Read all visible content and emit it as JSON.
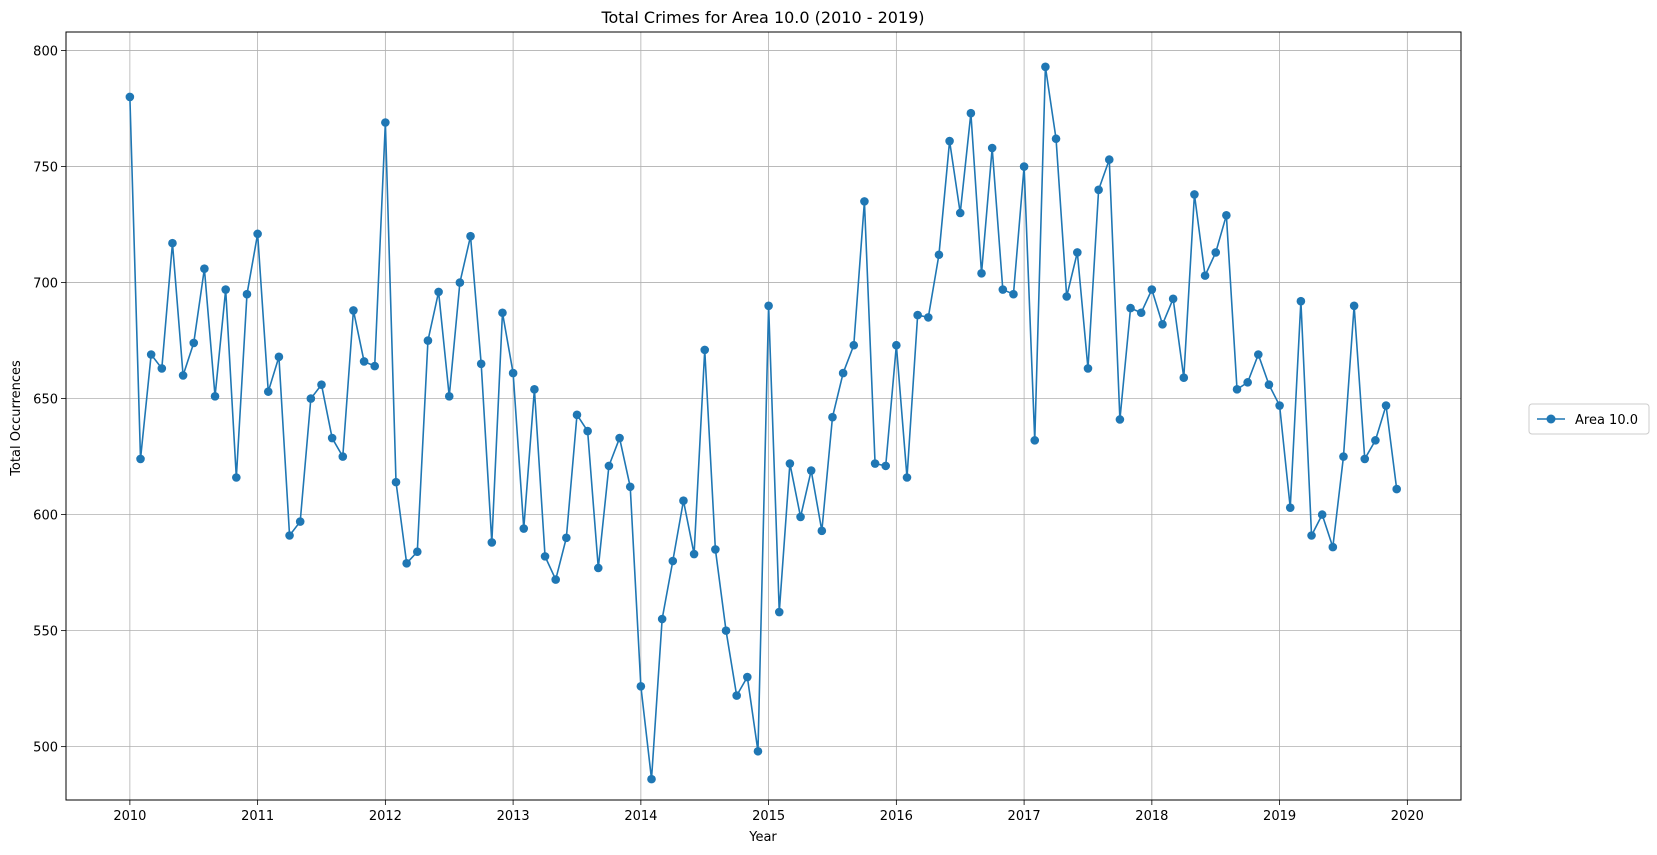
{
  "chart_data": {
    "type": "line",
    "title": "Total Crimes for Area 10.0 (2010 - 2019)",
    "xlabel": "Year",
    "ylabel": "Total Occurrences",
    "xlim": [
      2009.5,
      2020.42
    ],
    "ylim": [
      477,
      808
    ],
    "xticks": [
      2010,
      2011,
      2012,
      2013,
      2014,
      2015,
      2016,
      2017,
      2018,
      2019,
      2020
    ],
    "yticks": [
      500,
      550,
      600,
      650,
      700,
      750,
      800
    ],
    "grid": true,
    "legend_position": "right",
    "color": "#1f77b4",
    "x_start": "2010-01",
    "x_step": "monthly",
    "series": [
      {
        "name": "Area 10.0",
        "values": [
          780,
          624,
          669,
          663,
          717,
          660,
          674,
          706,
          651,
          697,
          616,
          695,
          721,
          653,
          668,
          591,
          597,
          650,
          656,
          633,
          625,
          688,
          666,
          664,
          769,
          614,
          579,
          584,
          675,
          696,
          651,
          700,
          720,
          665,
          588,
          687,
          661,
          594,
          654,
          582,
          572,
          590,
          643,
          636,
          577,
          621,
          633,
          612,
          526,
          486,
          555,
          580,
          606,
          583,
          671,
          585,
          550,
          522,
          530,
          498,
          690,
          558,
          622,
          599,
          619,
          593,
          642,
          661,
          673,
          735,
          622,
          621,
          673,
          616,
          686,
          685,
          712,
          761,
          730,
          773,
          704,
          758,
          697,
          695,
          750,
          632,
          793,
          762,
          694,
          713,
          663,
          740,
          753,
          641,
          689,
          687,
          697,
          682,
          693,
          659,
          738,
          703,
          713,
          729,
          654,
          657,
          669,
          656,
          647,
          603,
          692,
          591,
          600,
          586,
          625,
          690,
          624,
          632,
          647,
          611
        ]
      }
    ]
  }
}
